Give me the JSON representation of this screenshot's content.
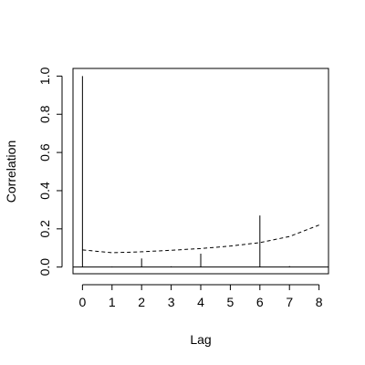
{
  "chart_data": {
    "type": "bar",
    "title": "",
    "xlabel": "Lag",
    "ylabel": "Correlation",
    "x": [
      0,
      1,
      2,
      3,
      4,
      5,
      6,
      7,
      8
    ],
    "values": [
      1.0,
      0.003,
      0.045,
      0.004,
      0.07,
      0.0,
      0.27,
      0.005,
      0.0
    ],
    "xlim": [
      -0.32,
      8.32
    ],
    "ylim": [
      -0.035,
      1.04
    ],
    "xticks": [
      "0",
      "1",
      "2",
      "3",
      "4",
      "5",
      "6",
      "7",
      "8"
    ],
    "yticks": [
      "0.0",
      "0.2",
      "0.4",
      "0.6",
      "0.8",
      "1.0"
    ],
    "reference_line": {
      "y": 0,
      "style": "solid"
    },
    "confidence_band": {
      "style": "dashed",
      "x": [
        0,
        1,
        2,
        3,
        4,
        5,
        6,
        7,
        8
      ],
      "values": [
        0.09,
        0.075,
        0.08,
        0.088,
        0.097,
        0.11,
        0.128,
        0.16,
        0.22
      ]
    },
    "grid": false,
    "legend": "none"
  }
}
